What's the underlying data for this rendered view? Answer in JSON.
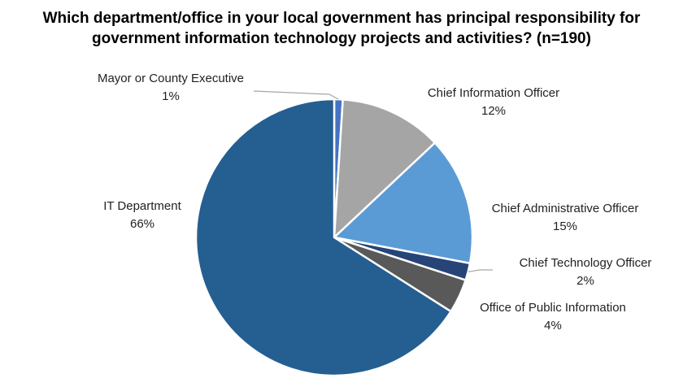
{
  "chart_data": {
    "type": "pie",
    "title_line1": "Which department/office in your local government has principal responsibility for",
    "title_line2": "government information technology projects and activities? (n=190)",
    "slices": [
      {
        "name": "Mayor or County Executive",
        "value": 1,
        "label": "1%",
        "color": "#4472C4"
      },
      {
        "name": "Chief Information Officer",
        "value": 12,
        "label": "12%",
        "color": "#A5A5A5"
      },
      {
        "name": "Chief Administrative Officer",
        "value": 15,
        "label": "15%",
        "color": "#5B9BD5"
      },
      {
        "name": "Chief Technology Officer",
        "value": 2,
        "label": "2%",
        "color": "#264478"
      },
      {
        "name": "Office of Public Information",
        "value": 4,
        "label": "4%",
        "color": "#595959"
      },
      {
        "name": "IT Department",
        "value": 66,
        "label": "66%",
        "color": "#255E91"
      }
    ],
    "legend": "none"
  }
}
